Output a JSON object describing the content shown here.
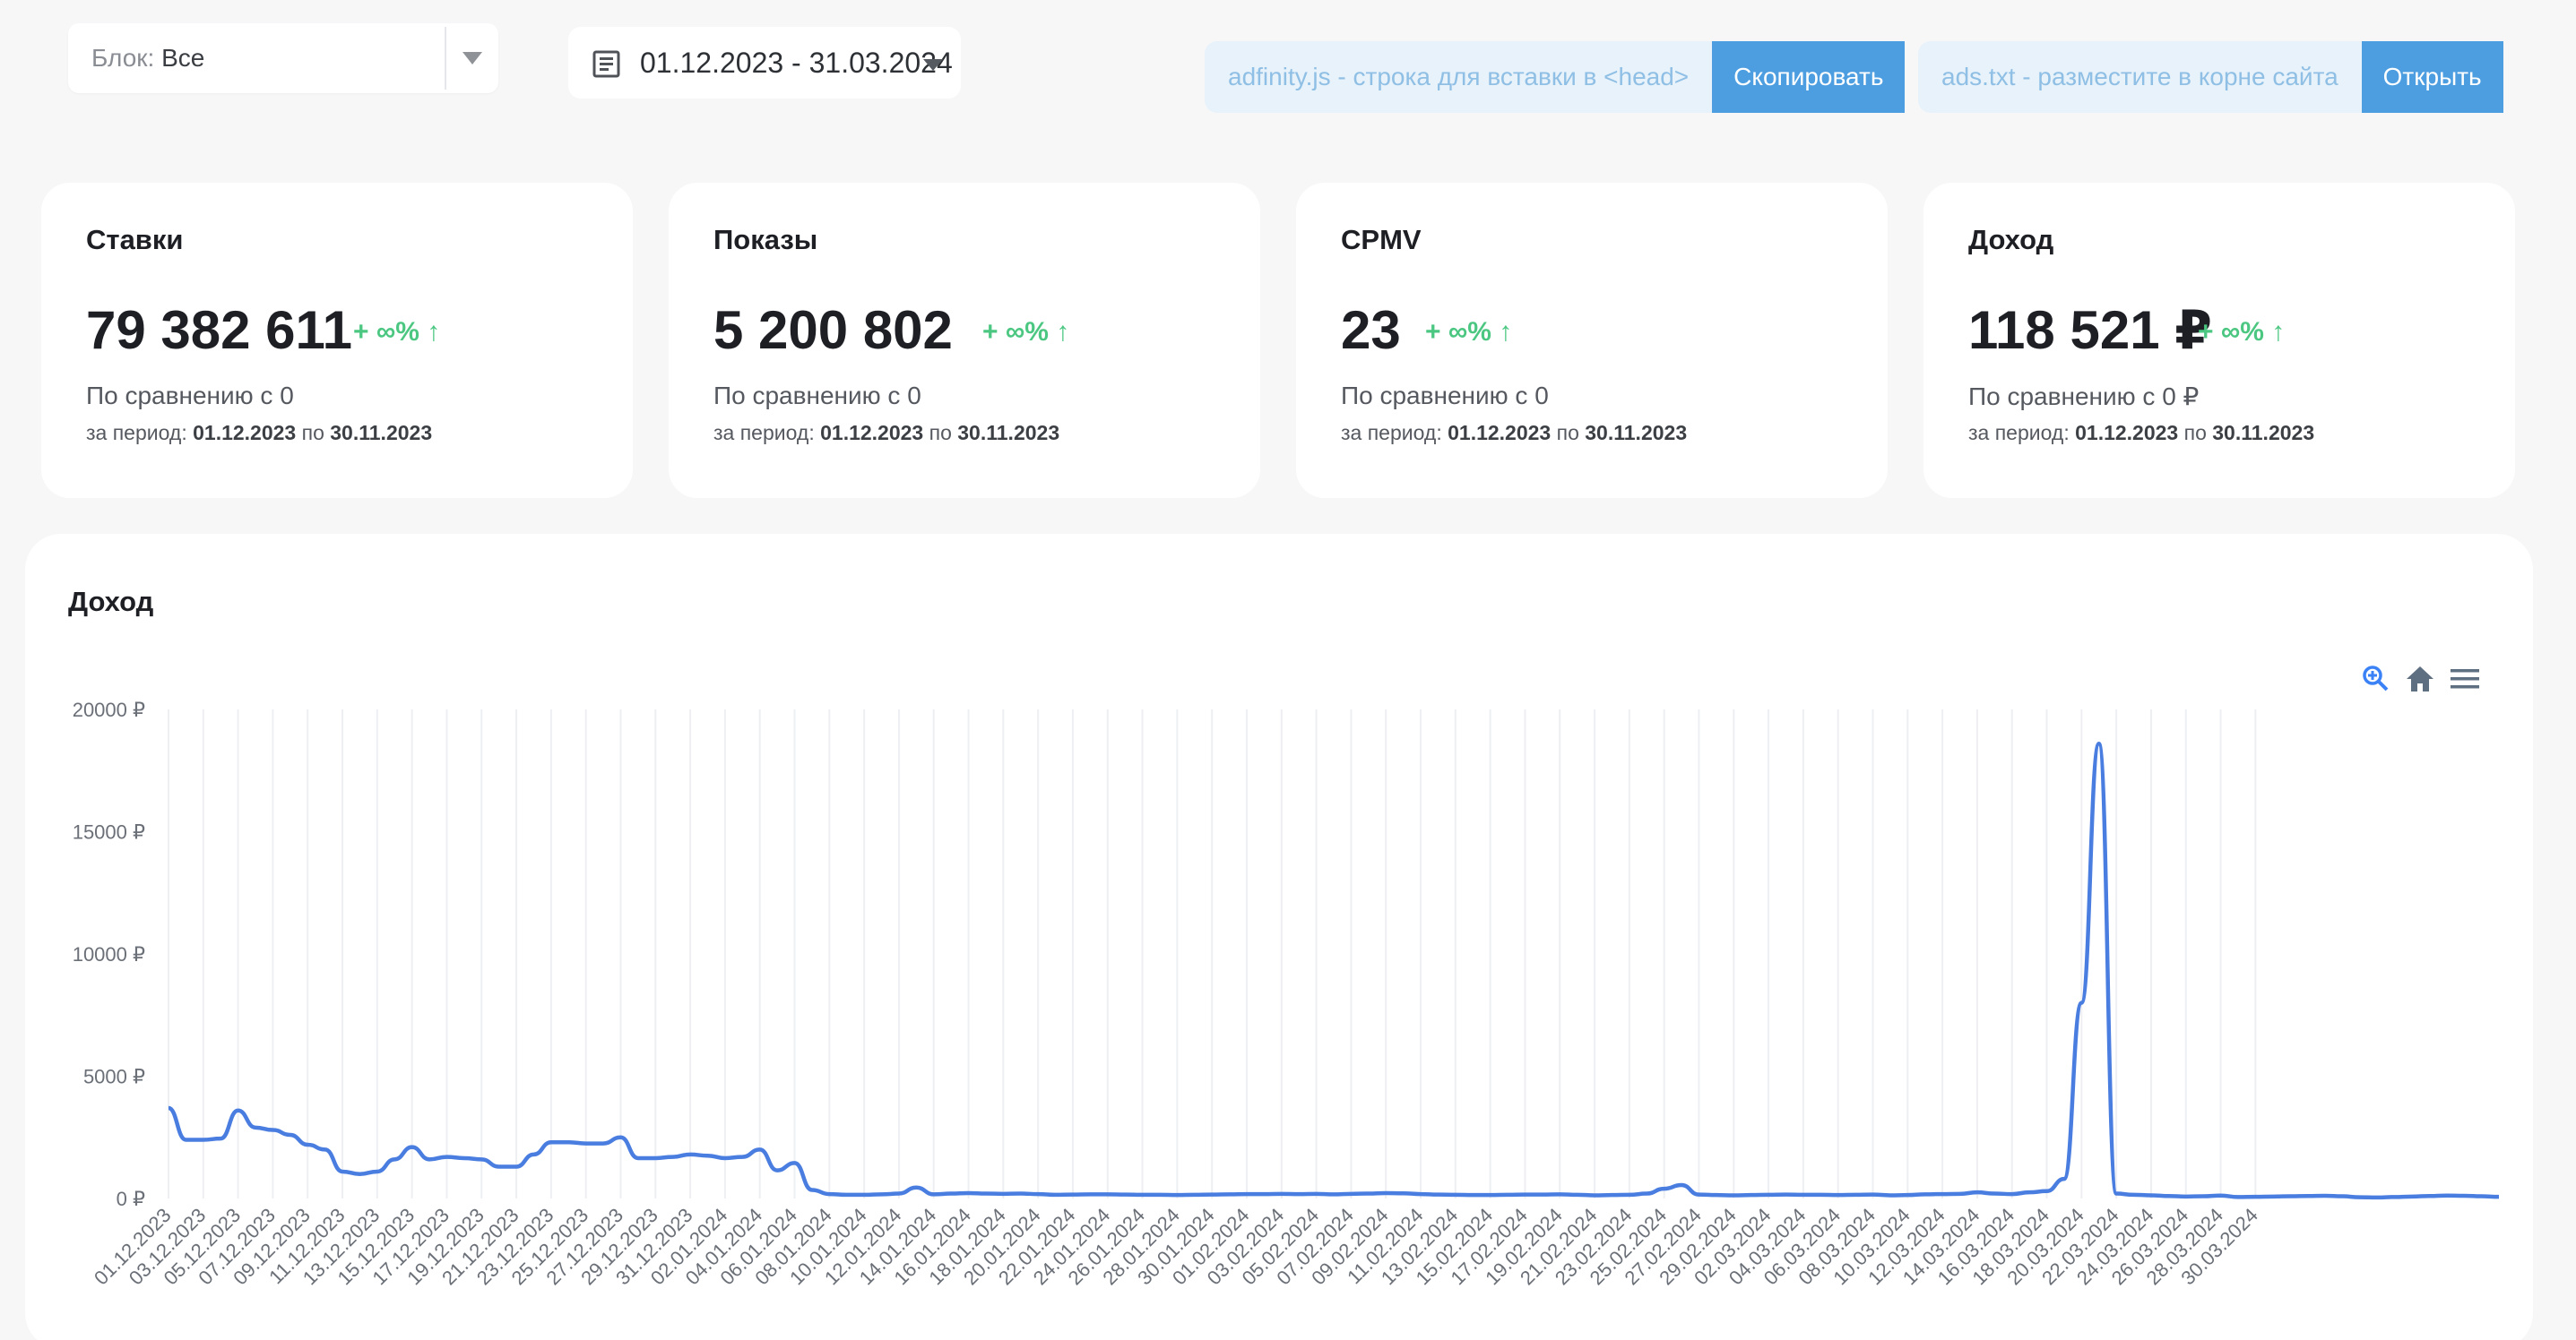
{
  "filters": {
    "block_label": "Блок:",
    "block_value": "Все",
    "date_range": "01.12.2023 - 31.03.2024"
  },
  "snippets": [
    {
      "hint": "adfinity.js - строка для вставки в <head>",
      "button": "Скопировать"
    },
    {
      "hint": "ads.txt - разместите в корне сайта",
      "button": "Открыть"
    }
  ],
  "stats": [
    {
      "title": "Ставки",
      "value": "79 382 611",
      "delta": "+ ∞%",
      "compare": "По сравнению с 0",
      "period_prefix": "за период:",
      "period_from": "01.12.2023",
      "period_sep": "по",
      "period_to": "30.11.2023"
    },
    {
      "title": "Показы",
      "value": "5 200 802",
      "delta": "+ ∞%",
      "compare": "По сравнению с 0",
      "period_prefix": "за период:",
      "period_from": "01.12.2023",
      "period_sep": "по",
      "period_to": "30.11.2023"
    },
    {
      "title": "CPMV",
      "value": "23",
      "delta": "+ ∞%",
      "compare": "По сравнению с 0",
      "period_prefix": "за период:",
      "period_from": "01.12.2023",
      "period_sep": "по",
      "period_to": "30.11.2023"
    },
    {
      "title": "Доход",
      "value": "118 521 ₽",
      "delta": "+ ∞%",
      "compare": "По сравнению с 0 ₽",
      "period_prefix": "за период:",
      "period_from": "01.12.2023",
      "period_sep": "по",
      "period_to": "30.11.2023"
    }
  ],
  "colors": {
    "accent": "#4d9ee0",
    "positive": "#4cc782",
    "line": "#4a7de0"
  },
  "icons": [
    "zoom-in-icon",
    "home-icon",
    "menu-icon",
    "calendar-icon",
    "arrow-up-icon"
  ],
  "chart_data": {
    "type": "line",
    "title": "Доход",
    "xlabel": "",
    "ylabel": "",
    "ylim": [
      0,
      20000
    ],
    "yticks": [
      "0 ₽",
      "5000 ₽",
      "10000 ₽",
      "15000 ₽",
      "20000 ₽"
    ],
    "grid": true,
    "series": [
      {
        "name": "",
        "x_start": "01.12.2023",
        "x_end": "31.03.2024",
        "values": [
          3700,
          2400,
          2400,
          2450,
          3600,
          2900,
          2800,
          2600,
          2200,
          2000,
          1100,
          1000,
          1100,
          1600,
          2100,
          1600,
          1700,
          1650,
          1600,
          1300,
          1300,
          1800,
          2300,
          2300,
          2250,
          2250,
          2500,
          1650,
          1650,
          1700,
          1800,
          1750,
          1650,
          1700,
          2000,
          1150,
          1450,
          350,
          180,
          150,
          150,
          170,
          200,
          450,
          170,
          200,
          220,
          200,
          190,
          200,
          180,
          150,
          160,
          170,
          170,
          160,
          150,
          150,
          140,
          150,
          160,
          170,
          180,
          180,
          190,
          180,
          190,
          170,
          190,
          200,
          220,
          210,
          180,
          160,
          150,
          140,
          140,
          150,
          160,
          160,
          170,
          150,
          130,
          140,
          150,
          200,
          400,
          550,
          160,
          140,
          130,
          140,
          150,
          160,
          150,
          150,
          140,
          150,
          160,
          130,
          140,
          170,
          180,
          190,
          250,
          200,
          180,
          250,
          300,
          800,
          8000,
          18600,
          200,
          150,
          130,
          100,
          80,
          90,
          120,
          60,
          70,
          80,
          90,
          100,
          110,
          90,
          50,
          40,
          60,
          80,
          100,
          120,
          110,
          90,
          70
        ]
      }
    ],
    "xtick_labels": [
      "01.12.2023",
      "03.12.2023",
      "05.12.2023",
      "07.12.2023",
      "09.12.2023",
      "11.12.2023",
      "13.12.2023",
      "15.12.2023",
      "17.12.2023",
      "19.12.2023",
      "21.12.2023",
      "23.12.2023",
      "25.12.2023",
      "27.12.2023",
      "29.12.2023",
      "31.12.2023",
      "02.01.2024",
      "04.01.2024",
      "06.01.2024",
      "08.01.2024",
      "10.01.2024",
      "12.01.2024",
      "14.01.2024",
      "16.01.2024",
      "18.01.2024",
      "20.01.2024",
      "22.01.2024",
      "24.01.2024",
      "26.01.2024",
      "28.01.2024",
      "30.01.2024",
      "01.02.2024",
      "03.02.2024",
      "05.02.2024",
      "07.02.2024",
      "09.02.2024",
      "11.02.2024",
      "13.02.2024",
      "15.02.2024",
      "17.02.2024",
      "19.02.2024",
      "21.02.2024",
      "23.02.2024",
      "25.02.2024",
      "27.02.2024",
      "29.02.2024",
      "02.03.2024",
      "04.03.2024",
      "06.03.2024",
      "08.03.2024",
      "10.03.2024",
      "12.03.2024",
      "14.03.2024",
      "16.03.2024",
      "18.03.2024",
      "20.03.2024",
      "22.03.2024",
      "24.03.2024",
      "26.03.2024",
      "28.03.2024",
      "30.03.2024"
    ]
  }
}
